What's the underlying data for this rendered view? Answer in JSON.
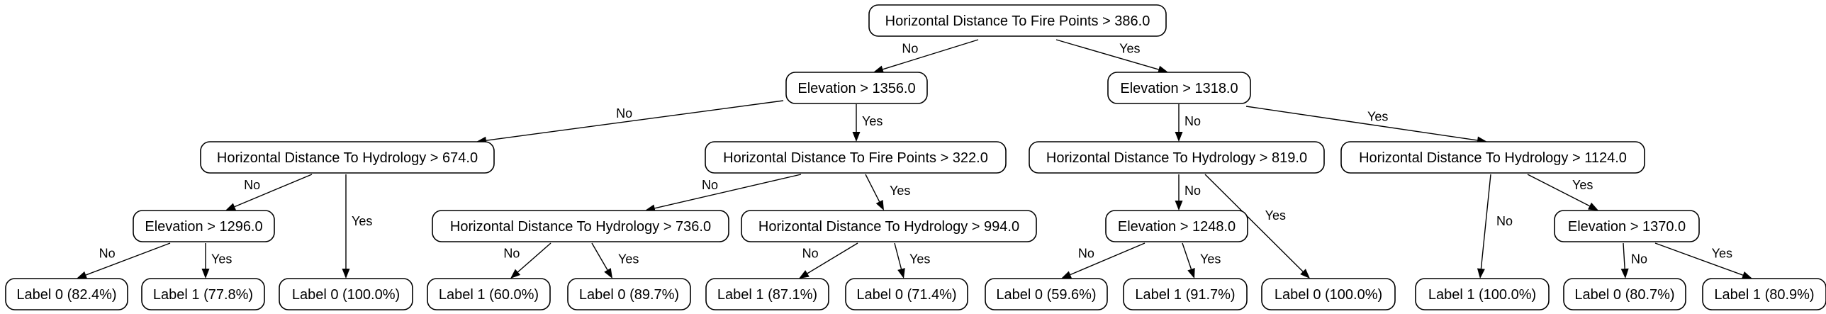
{
  "nodes": {
    "n0": "Horizontal Distance To Fire Points > 386.0",
    "n1": "Elevation > 1356.0",
    "n2": "Elevation > 1318.0",
    "n3": "Horizontal Distance To Hydrology > 674.0",
    "n4": "Horizontal Distance To Fire Points > 322.0",
    "n5": "Horizontal Distance To Hydrology > 819.0",
    "n6": "Horizontal Distance To Hydrology > 1124.0",
    "n7": "Elevation > 1296.0",
    "n8": "Horizontal Distance To Hydrology > 736.0",
    "n9": "Horizontal Distance To Hydrology > 994.0",
    "n10": "Elevation > 1248.0",
    "n11": "Elevation > 1370.0",
    "l1": "Label 0 (82.4%)",
    "l2": "Label 1 (77.8%)",
    "l3": "Label 0 (100.0%)",
    "l4": "Label 1 (60.0%)",
    "l5": "Label 0 (89.7%)",
    "l6": "Label 1 (87.1%)",
    "l7": "Label 0 (71.4%)",
    "l8": "Label 0 (59.6%)",
    "l9": "Label 1 (91.7%)",
    "l10": "Label 0 (100.0%)",
    "l11": "Label 1 (100.0%)",
    "l12": "Label 0 (80.7%)",
    "l13": "Label 1 (80.9%)"
  },
  "edge_labels": {
    "no": "No",
    "yes": "Yes"
  },
  "colors": {
    "stroke": "#000000",
    "fill": "#ffffff",
    "text": "#000000"
  }
}
